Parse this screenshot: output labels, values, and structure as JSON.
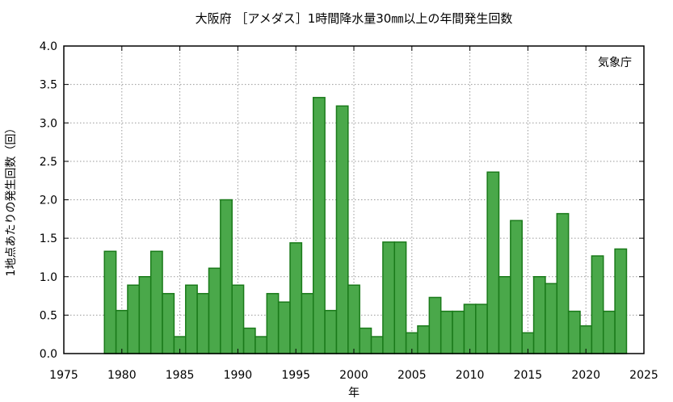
{
  "chart_data": {
    "type": "bar",
    "title": "大阪府 ［アメダス］1時間降水量30㎜以上の年間発生回数",
    "xlabel": "年",
    "ylabel": "1地点あたりの発生回数（回）",
    "source_label": "気象庁",
    "xlim": [
      1975,
      2025
    ],
    "ylim": [
      0,
      4.0
    ],
    "x_ticks": [
      1975,
      1980,
      1985,
      1990,
      1995,
      2000,
      2005,
      2010,
      2015,
      2020,
      2025
    ],
    "y_ticks": [
      "0.0",
      "0.5",
      "1.0",
      "1.5",
      "2.0",
      "2.5",
      "3.0",
      "3.5",
      "4.0"
    ],
    "grid": true,
    "bar_color": "#4aa84a",
    "bar_edge_color": "#1a7a1a",
    "categories": [
      1979,
      1980,
      1981,
      1982,
      1983,
      1984,
      1985,
      1986,
      1987,
      1988,
      1989,
      1990,
      1991,
      1992,
      1993,
      1994,
      1995,
      1996,
      1997,
      1998,
      1999,
      2000,
      2001,
      2002,
      2003,
      2004,
      2005,
      2006,
      2007,
      2008,
      2009,
      2010,
      2011,
      2012,
      2013,
      2014,
      2015,
      2016,
      2017,
      2018,
      2019,
      2020,
      2021,
      2022,
      2023
    ],
    "values": [
      1.33,
      0.56,
      0.89,
      1.0,
      1.33,
      0.78,
      0.22,
      0.89,
      0.78,
      1.11,
      2.0,
      0.89,
      0.33,
      0.22,
      0.78,
      0.67,
      1.44,
      0.78,
      3.33,
      0.56,
      3.22,
      0.89,
      0.33,
      0.22,
      1.45,
      1.45,
      0.27,
      0.36,
      0.73,
      0.55,
      0.55,
      0.64,
      0.64,
      2.36,
      1.0,
      1.73,
      0.27,
      1.0,
      0.91,
      1.82,
      0.55,
      0.36,
      1.27,
      0.55,
      1.36
    ]
  }
}
